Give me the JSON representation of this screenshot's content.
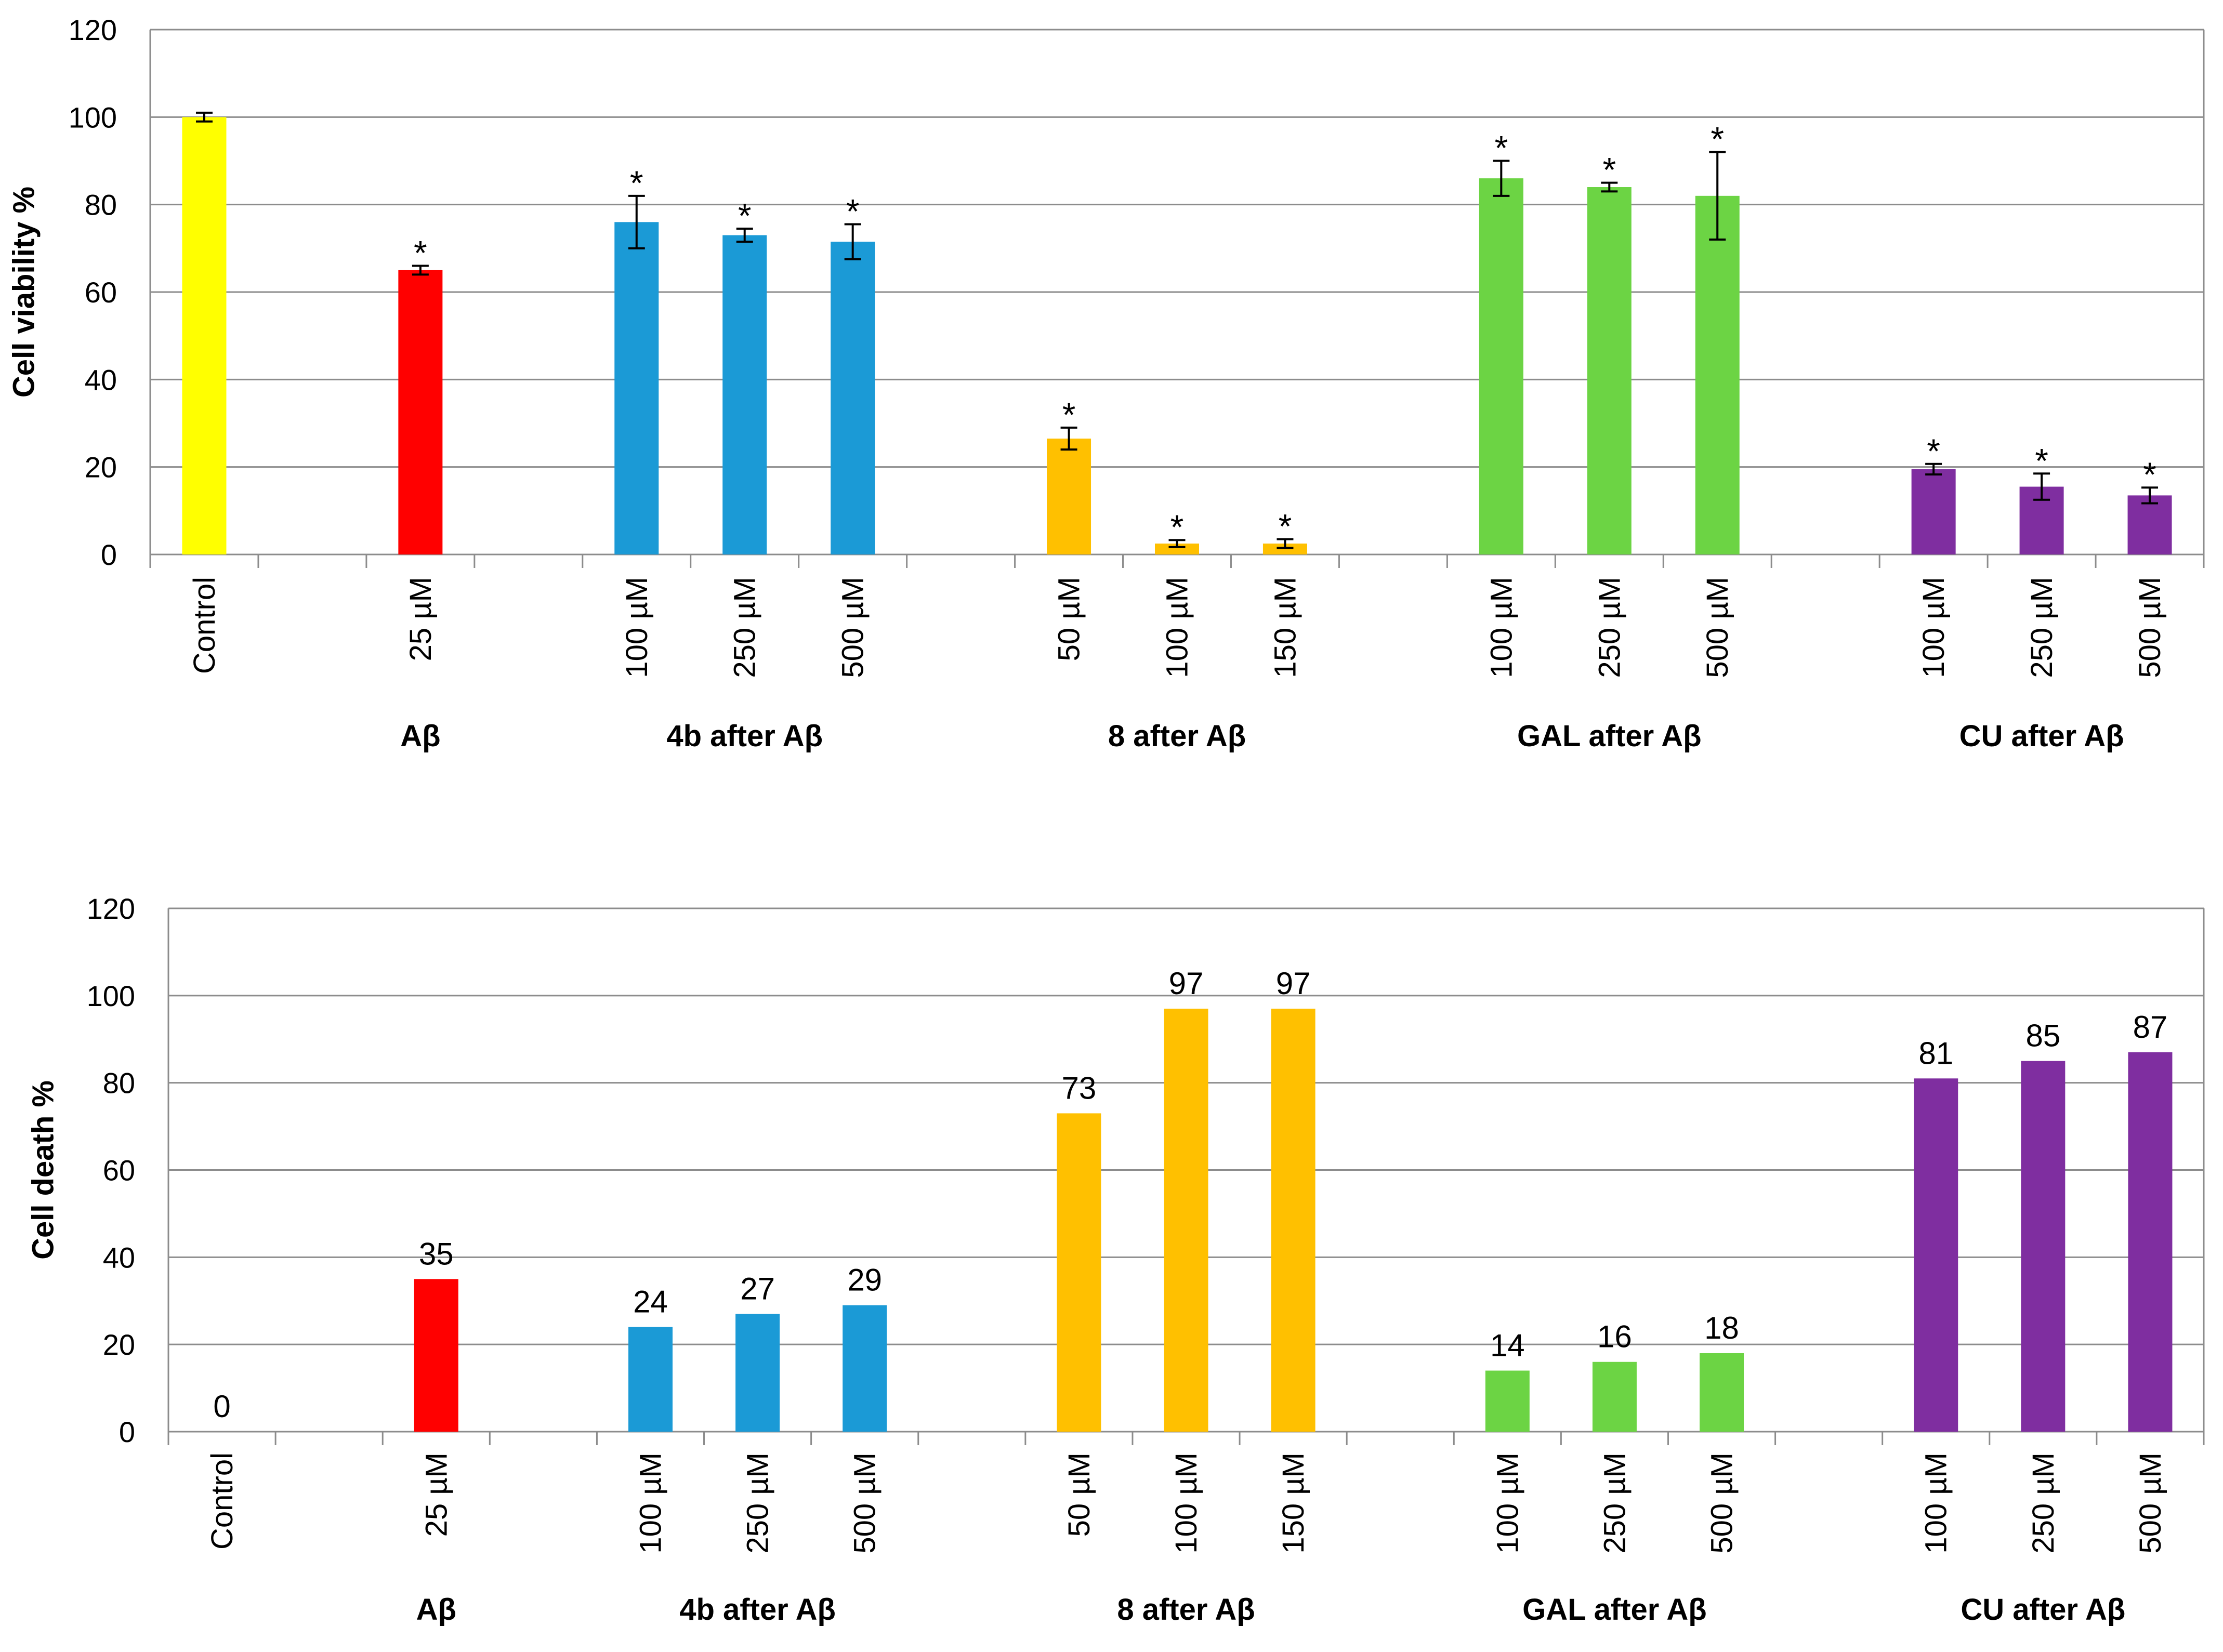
{
  "chart_data": [
    {
      "type": "bar",
      "ylabel": "Cell viability %",
      "ylim": [
        0,
        120
      ],
      "yticks": [
        0,
        20,
        40,
        60,
        80,
        100,
        120
      ],
      "grid": true,
      "slots": [
        "Control",
        "",
        "25 µM",
        "",
        "100 µM",
        "250 µM",
        "500 µM",
        "",
        "50 µM",
        "100 µM",
        "150 µM",
        "",
        "100 µM",
        "250 µM",
        "500 µM",
        "",
        "100 µM",
        "250 µM",
        "500 µM"
      ],
      "values": [
        100,
        null,
        65,
        null,
        76,
        73,
        71.5,
        null,
        26.5,
        2.5,
        2.5,
        null,
        86,
        84,
        82,
        null,
        19.5,
        15.5,
        13.5
      ],
      "errors": [
        1,
        null,
        1,
        null,
        6,
        1.5,
        4,
        null,
        2.5,
        0.8,
        1,
        null,
        4,
        1,
        10,
        null,
        1.2,
        3,
        1.8
      ],
      "marks": [
        "",
        "",
        "*",
        "",
        "*",
        "*",
        "*",
        "",
        "*",
        "*",
        "*",
        "",
        "*",
        "*",
        "*",
        "",
        "*",
        "*",
        "*"
      ],
      "colors": [
        "#FFFF00",
        "",
        "#FF0000",
        "",
        "#1B9AD6",
        "#1B9AD6",
        "#1B9AD6",
        "",
        "#FFC000",
        "#FFC000",
        "#FFC000",
        "",
        "#6CD444",
        "#6CD444",
        "#6CD444",
        "",
        "#7F2EA0",
        "#7F2EA0",
        "#7F2EA0"
      ],
      "groups": [
        {
          "label": "Aβ",
          "from": 2,
          "to": 2
        },
        {
          "label": "4b after Aβ",
          "from": 4,
          "to": 6
        },
        {
          "label": "8 after Aβ",
          "from": 8,
          "to": 10
        },
        {
          "label": "GAL after Aβ",
          "from": 12,
          "to": 14
        },
        {
          "label": "CU after Aβ",
          "from": 16,
          "to": 18
        }
      ]
    },
    {
      "type": "bar",
      "ylabel": "Cell death %",
      "ylim": [
        0,
        120
      ],
      "yticks": [
        0,
        20,
        40,
        60,
        80,
        100,
        120
      ],
      "grid": true,
      "slots": [
        "Control",
        "",
        "25 µM",
        "",
        "100 µM",
        "250 µM",
        "500 µM",
        "",
        "50 µM",
        "100 µM",
        "150 µM",
        "",
        "100 µM",
        "250 µM",
        "500 µM",
        "",
        "100 µM",
        "250 µM",
        "500 µM"
      ],
      "values": [
        0,
        null,
        35,
        null,
        24,
        27,
        29,
        null,
        73,
        97,
        97,
        null,
        14,
        16,
        18,
        null,
        81,
        85,
        87
      ],
      "value_labels": [
        "0",
        "",
        "35",
        "",
        "24",
        "27",
        "29",
        "",
        "73",
        "97",
        "97",
        "",
        "14",
        "16",
        "18",
        "",
        "81",
        "85",
        "87"
      ],
      "colors": [
        "#FFFF00",
        "",
        "#FF0000",
        "",
        "#1B9AD6",
        "#1B9AD6",
        "#1B9AD6",
        "",
        "#FFC000",
        "#FFC000",
        "#FFC000",
        "",
        "#6CD444",
        "#6CD444",
        "#6CD444",
        "",
        "#7F2EA0",
        "#7F2EA0",
        "#7F2EA0"
      ],
      "groups": [
        {
          "label": "Aβ",
          "from": 2,
          "to": 2
        },
        {
          "label": "4b after Aβ",
          "from": 4,
          "to": 6
        },
        {
          "label": "8 after Aβ",
          "from": 8,
          "to": 10
        },
        {
          "label": "GAL after Aβ",
          "from": 12,
          "to": 14
        },
        {
          "label": "CU after Aβ",
          "from": 16,
          "to": 18
        }
      ]
    }
  ]
}
